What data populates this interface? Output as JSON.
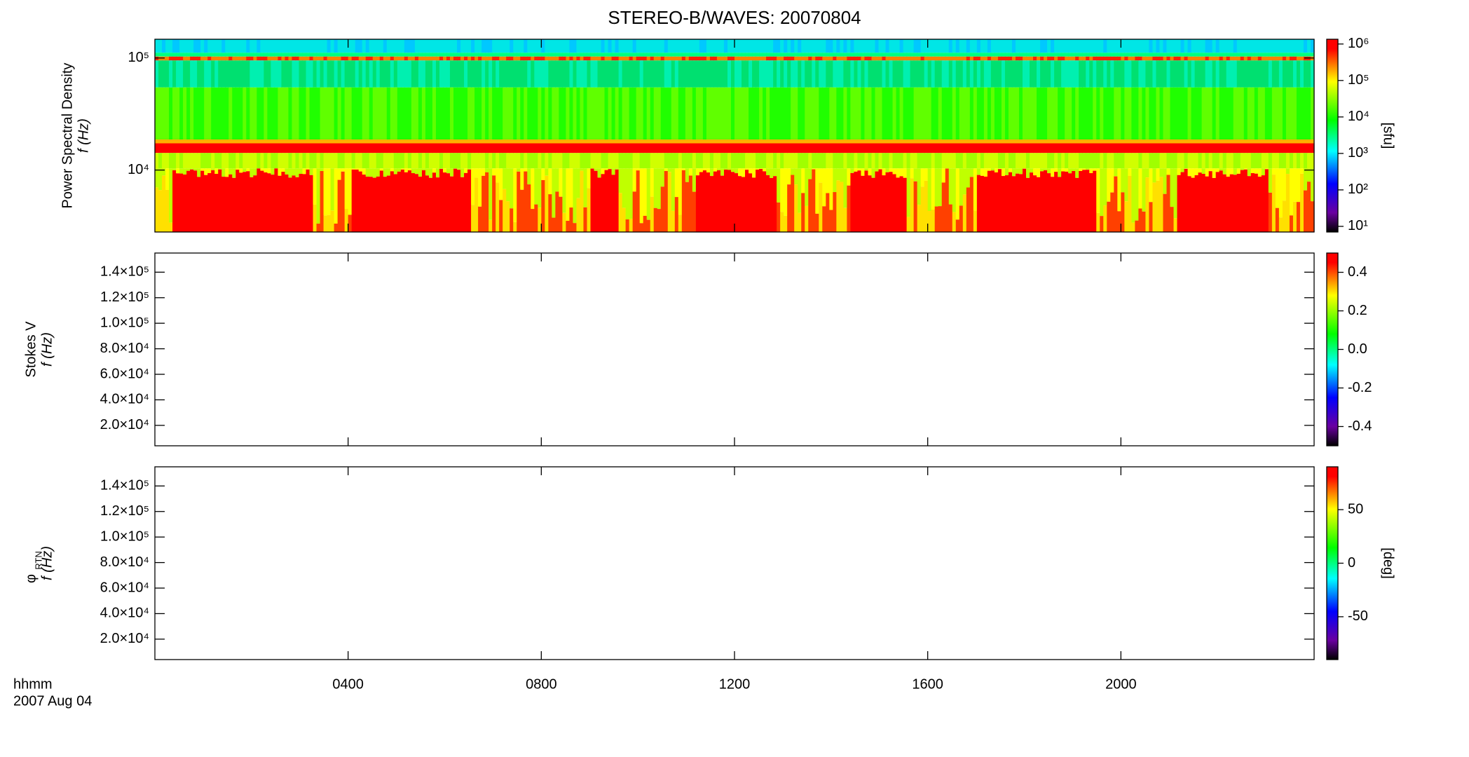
{
  "chart_data": [
    {
      "type": "spectrogram",
      "title": "STEREO-B/WAVES: 20070804",
      "y_label": "Power Spectral Density",
      "y_sublabel": "f (Hz)",
      "ylog": true,
      "ylim": [
        2800,
        147000
      ],
      "yticks": [
        {
          "value": 10000,
          "label": "10⁴"
        },
        {
          "value": 100000,
          "label": "10⁵"
        }
      ],
      "xlim": [
        0,
        24
      ],
      "xticks": [
        4,
        8,
        12,
        16,
        20
      ],
      "colorbar": {
        "log": true,
        "lim": [
          7,
          1350000
        ],
        "label": "[sfu]",
        "ticks": [
          {
            "value": 10,
            "label": "10¹"
          },
          {
            "value": 100,
            "label": "10²"
          },
          {
            "value": 1000,
            "label": "10³"
          },
          {
            "value": 10000,
            "label": "10⁴"
          },
          {
            "value": 100000,
            "label": "10⁵"
          },
          {
            "value": 1000000,
            "label": "10⁶"
          }
        ]
      }
    },
    {
      "type": "spectrogram",
      "y_label": "Stokes V",
      "y_sublabel": "f (Hz)",
      "ylog": false,
      "ylim": [
        4000,
        155000
      ],
      "yticks": [
        {
          "value": 20000,
          "label": "2.0×10⁴"
        },
        {
          "value": 40000,
          "label": "4.0×10⁴"
        },
        {
          "value": 60000,
          "label": "6.0×10⁴"
        },
        {
          "value": 80000,
          "label": "8.0×10⁴"
        },
        {
          "value": 100000,
          "label": "1.0×10⁵"
        },
        {
          "value": 120000,
          "label": "1.2×10⁵"
        },
        {
          "value": 140000,
          "label": "1.4×10⁵"
        }
      ],
      "xlim": [
        0,
        24
      ],
      "xticks": [
        4,
        8,
        12,
        16,
        20
      ],
      "colorbar": {
        "log": false,
        "lim": [
          -0.5,
          0.5
        ],
        "ticks": [
          -0.4,
          -0.2,
          {
            "value": 0,
            "label": "0.0"
          },
          0.2,
          0.4
        ]
      }
    },
    {
      "type": "spectrogram",
      "y_label": "φ",
      "y_label_sub": "RTN",
      "y_sublabel": "f (Hz)",
      "ylog": false,
      "ylim": [
        4000,
        155000
      ],
      "yticks": [
        {
          "value": 20000,
          "label": "2.0×10⁴"
        },
        {
          "value": 40000,
          "label": "4.0×10⁴"
        },
        {
          "value": 60000,
          "label": "6.0×10⁴"
        },
        {
          "value": 80000,
          "label": "8.0×10⁴"
        },
        {
          "value": 100000,
          "label": "1.0×10⁵"
        },
        {
          "value": 120000,
          "label": "1.2×10⁵"
        },
        {
          "value": 140000,
          "label": "1.4×10⁵"
        }
      ],
      "xlim": [
        0,
        24
      ],
      "xticks": [
        {
          "value": 4,
          "label": "0400"
        },
        {
          "value": 8,
          "label": "0800"
        },
        {
          "value": 12,
          "label": "1200"
        },
        {
          "value": 16,
          "label": "1600"
        },
        {
          "value": 20,
          "label": "2000"
        }
      ],
      "x_label": "hhmm",
      "x_sublabel": "2007 Aug 04",
      "colorbar": {
        "log": false,
        "lim": [
          -90,
          90
        ],
        "label": "[deg]",
        "ticks": [
          -50,
          0,
          50
        ]
      }
    }
  ]
}
